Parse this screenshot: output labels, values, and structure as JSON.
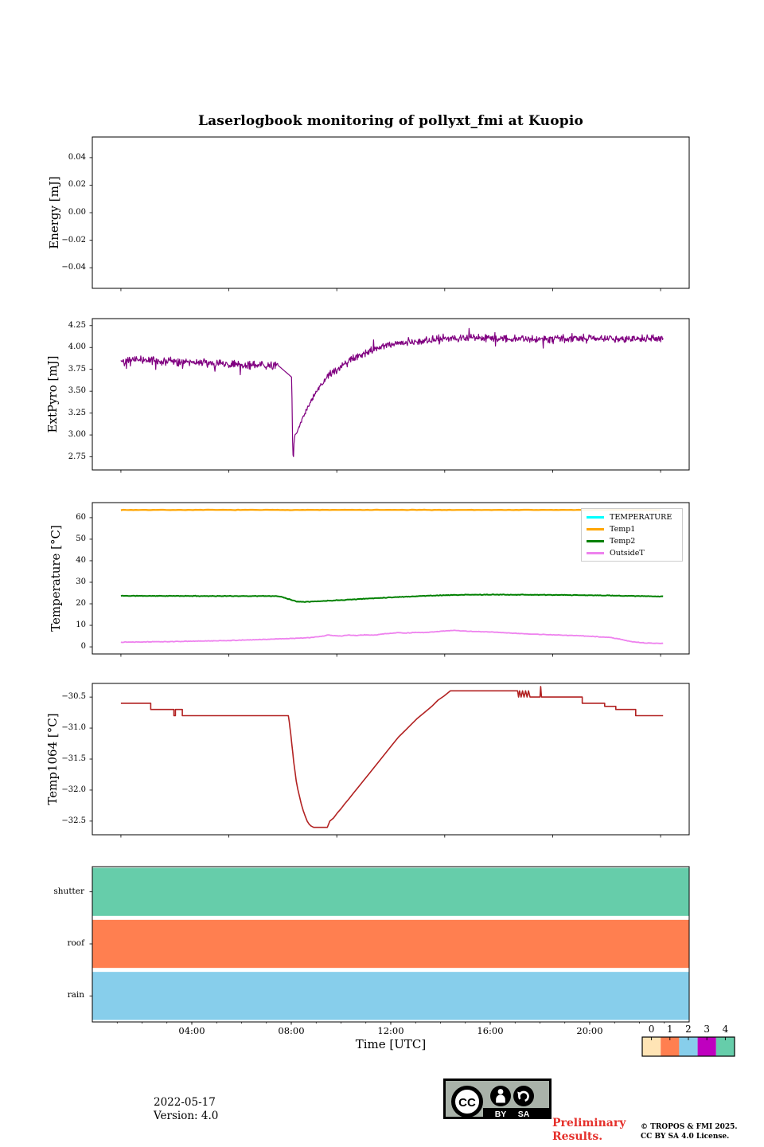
{
  "title": "Laserlogbook monitoring of pollyxt_fmi at Kuopio",
  "xaxis": {
    "label": "Time [UTC]",
    "tick_labels": [
      "04:00",
      "08:00",
      "12:00",
      "16:00",
      "20:00"
    ],
    "tick_hours": [
      4,
      8,
      12,
      16,
      20
    ],
    "xlim": [
      0,
      24
    ]
  },
  "colorbar": {
    "labels": [
      "0",
      "1",
      "2",
      "3",
      "4"
    ],
    "colors": [
      "#ffe4b5",
      "#ff7f50",
      "#87ceeb",
      "#bf00bf",
      "#66cdaa"
    ]
  },
  "badge": {
    "cc": "CC",
    "by": "BY",
    "sa": "SA"
  },
  "footer": {
    "date": "2022-05-17",
    "version": "Version: 4.0",
    "preliminary_line1": "Preliminary",
    "preliminary_line2": "Results.",
    "copyright_line1": "© TROPOS & FMI 2025.",
    "copyright_line2": "CC BY SA 4.0 License."
  },
  "chart_data": [
    {
      "id": "energy",
      "type": "line",
      "ylabel": "Energy [mJ]",
      "ylim": [
        -0.055,
        0.055
      ],
      "yticks": [
        {
          "v": 0.04,
          "label": "0.04"
        },
        {
          "v": 0.02,
          "label": "0.02"
        },
        {
          "v": 0.0,
          "label": "0.00"
        },
        {
          "v": -0.02,
          "label": "−0.02"
        },
        {
          "v": -0.04,
          "label": "−0.04"
        }
      ],
      "series": []
    },
    {
      "id": "extpyro",
      "type": "line",
      "ylabel": "ExtPyro [mJ]",
      "ylim": [
        2.6,
        4.33
      ],
      "yticks": [
        {
          "v": 4.25,
          "label": "4.25"
        },
        {
          "v": 4.0,
          "label": "4.00"
        },
        {
          "v": 3.75,
          "label": "3.75"
        },
        {
          "v": 3.5,
          "label": "3.50"
        },
        {
          "v": 3.25,
          "label": "3.25"
        },
        {
          "v": 3.0,
          "label": "3.00"
        },
        {
          "v": 2.75,
          "label": "2.75"
        }
      ],
      "series": [
        {
          "name": "ExtPyro",
          "color": "#800080",
          "lw": 1.2,
          "anchors": [
            [
              1.15,
              3.85
            ],
            [
              2.0,
              3.86
            ],
            [
              3.0,
              3.84
            ],
            [
              4.0,
              3.83
            ],
            [
              5.0,
              3.81
            ],
            [
              6.0,
              3.8
            ],
            [
              7.0,
              3.79
            ],
            [
              7.45,
              3.8
            ],
            [
              8.02,
              3.66
            ],
            [
              8.05,
              2.95
            ],
            [
              8.08,
              2.68
            ],
            [
              8.11,
              2.9
            ],
            [
              8.14,
              3.0
            ],
            [
              8.22,
              3.02
            ],
            [
              8.5,
              3.22
            ],
            [
              9.0,
              3.5
            ],
            [
              9.5,
              3.68
            ],
            [
              10.0,
              3.79
            ],
            [
              10.5,
              3.87
            ],
            [
              11.0,
              3.94
            ],
            [
              11.5,
              4.0
            ],
            [
              12.0,
              4.04
            ],
            [
              13.0,
              4.07
            ],
            [
              14.0,
              4.1
            ],
            [
              15.5,
              4.11
            ],
            [
              17.0,
              4.1
            ],
            [
              19.0,
              4.1
            ],
            [
              21.0,
              4.1
            ],
            [
              22.95,
              4.1
            ]
          ],
          "noise": {
            "dt": 0.02,
            "seed": 42,
            "amp_pre": 0.055,
            "amp_post": 0.05,
            "quiet": [
              7.45,
              8.25
            ],
            "ramp_end": 9.6,
            "spike_prob": 0.05,
            "spike_amp": 0.09
          }
        }
      ]
    },
    {
      "id": "temperature",
      "type": "line",
      "ylabel": "Temperature [°C]",
      "ylim": [
        -3.3,
        67
      ],
      "yticks": [
        {
          "v": 60,
          "label": "60"
        },
        {
          "v": 50,
          "label": "50"
        },
        {
          "v": 40,
          "label": "40"
        },
        {
          "v": 30,
          "label": "30"
        },
        {
          "v": 20,
          "label": "20"
        },
        {
          "v": 10,
          "label": "10"
        },
        {
          "v": 0,
          "label": "0"
        }
      ],
      "legend": [
        {
          "label": "TEMPERATURE",
          "color": "#00ffff"
        },
        {
          "label": "Temp1",
          "color": "#ffa500"
        },
        {
          "label": "Temp2",
          "color": "#008000"
        },
        {
          "label": "OutsideT",
          "color": "#ee82ee"
        }
      ],
      "series": [
        {
          "name": "Temp1",
          "color": "#ffa500",
          "lw": 2.2,
          "anchors": [
            [
              1.15,
              63.6
            ],
            [
              22.95,
              63.6
            ]
          ],
          "noise": {
            "dt": 0.1,
            "seed": 7,
            "amp_pre": 0.12,
            "amp_post": 0.12
          }
        },
        {
          "name": "Temp2",
          "color": "#008000",
          "lw": 2.0,
          "anchors": [
            [
              1.15,
              23.7
            ],
            [
              3.0,
              23.65
            ],
            [
              5.0,
              23.6
            ],
            [
              7.3,
              23.6
            ],
            [
              7.6,
              23.3
            ],
            [
              7.9,
              22.2
            ],
            [
              8.2,
              21.1
            ],
            [
              8.5,
              20.95
            ],
            [
              9.0,
              21.1
            ],
            [
              9.6,
              21.5
            ],
            [
              10.4,
              22.0
            ],
            [
              11.2,
              22.5
            ],
            [
              12.0,
              23.0
            ],
            [
              12.8,
              23.4
            ],
            [
              13.6,
              23.8
            ],
            [
              14.4,
              24.05
            ],
            [
              15.2,
              24.2
            ],
            [
              16.5,
              24.25
            ],
            [
              17.5,
              24.2
            ],
            [
              18.5,
              24.1
            ],
            [
              19.5,
              24.0
            ],
            [
              20.5,
              23.9
            ],
            [
              21.5,
              23.7
            ],
            [
              22.3,
              23.5
            ],
            [
              22.95,
              23.45
            ]
          ],
          "noise": {
            "dt": 0.04,
            "seed": 11,
            "amp_pre": 0.18,
            "amp_post": 0.18
          }
        },
        {
          "name": "OutsideT",
          "color": "#ee82ee",
          "lw": 1.8,
          "anchors": [
            [
              1.15,
              2.2
            ],
            [
              2.0,
              2.3
            ],
            [
              3.0,
              2.4
            ],
            [
              4.0,
              2.6
            ],
            [
              5.0,
              2.8
            ],
            [
              6.0,
              3.1
            ],
            [
              7.0,
              3.5
            ],
            [
              8.0,
              3.9
            ],
            [
              8.8,
              4.3
            ],
            [
              9.3,
              5.0
            ],
            [
              9.5,
              5.6
            ],
            [
              9.7,
              5.2
            ],
            [
              10.0,
              5.0
            ],
            [
              10.3,
              5.5
            ],
            [
              10.6,
              5.3
            ],
            [
              11.0,
              5.6
            ],
            [
              11.3,
              5.4
            ],
            [
              11.7,
              6.0
            ],
            [
              12.0,
              6.3
            ],
            [
              12.3,
              6.6
            ],
            [
              12.6,
              6.4
            ],
            [
              13.0,
              6.7
            ],
            [
              13.3,
              6.6
            ],
            [
              13.8,
              7.0
            ],
            [
              14.3,
              7.5
            ],
            [
              14.6,
              7.6
            ],
            [
              15.0,
              7.3
            ],
            [
              15.5,
              7.1
            ],
            [
              16.0,
              6.9
            ],
            [
              16.5,
              6.6
            ],
            [
              17.0,
              6.3
            ],
            [
              17.5,
              6.0
            ],
            [
              18.0,
              5.8
            ],
            [
              18.5,
              5.6
            ],
            [
              19.0,
              5.4
            ],
            [
              19.5,
              5.2
            ],
            [
              20.0,
              4.9
            ],
            [
              20.5,
              4.6
            ],
            [
              20.8,
              4.4
            ],
            [
              21.2,
              3.6
            ],
            [
              21.6,
              2.6
            ],
            [
              22.0,
              2.0
            ],
            [
              22.4,
              1.7
            ],
            [
              22.95,
              1.6
            ]
          ],
          "noise": {
            "dt": 0.04,
            "seed": 13,
            "amp_pre": 0.14,
            "amp_post": 0.14
          }
        }
      ]
    },
    {
      "id": "temp1064",
      "type": "step",
      "ylabel": "Temp1064 [°C]",
      "ylim": [
        -32.72,
        -30.28
      ],
      "yticks": [
        {
          "v": -30.5,
          "label": "−30.5"
        },
        {
          "v": -31.0,
          "label": "−31.0"
        },
        {
          "v": -31.5,
          "label": "−31.5"
        },
        {
          "v": -32.0,
          "label": "−32.0"
        },
        {
          "v": -32.5,
          "label": "−32.5"
        }
      ],
      "series": [
        {
          "name": "Temp1064",
          "color": "#b22222",
          "lw": 1.6,
          "points": [
            [
              1.15,
              -30.6
            ],
            [
              2.35,
              -30.6
            ],
            [
              2.35,
              -30.7
            ],
            [
              3.28,
              -30.7
            ],
            [
              3.28,
              -30.8
            ],
            [
              3.34,
              -30.8
            ],
            [
              3.34,
              -30.7
            ],
            [
              3.62,
              -30.7
            ],
            [
              3.62,
              -30.8
            ],
            [
              7.88,
              -30.8
            ],
            [
              7.92,
              -30.9
            ],
            [
              7.95,
              -31.0
            ],
            [
              7.98,
              -31.1
            ],
            [
              8.02,
              -31.25
            ],
            [
              8.06,
              -31.4
            ],
            [
              8.1,
              -31.55
            ],
            [
              8.15,
              -31.7
            ],
            [
              8.2,
              -31.85
            ],
            [
              8.26,
              -31.98
            ],
            [
              8.33,
              -32.1
            ],
            [
              8.4,
              -32.22
            ],
            [
              8.48,
              -32.33
            ],
            [
              8.56,
              -32.42
            ],
            [
              8.64,
              -32.5
            ],
            [
              8.72,
              -32.55
            ],
            [
              8.8,
              -32.58
            ],
            [
              8.9,
              -32.6
            ],
            [
              9.45,
              -32.6
            ],
            [
              9.55,
              -32.5
            ],
            [
              9.7,
              -32.45
            ],
            [
              9.85,
              -32.37
            ],
            [
              10.0,
              -32.3
            ],
            [
              10.15,
              -32.22
            ],
            [
              10.3,
              -32.15
            ],
            [
              10.5,
              -32.05
            ],
            [
              10.7,
              -31.95
            ],
            [
              10.9,
              -31.85
            ],
            [
              11.1,
              -31.75
            ],
            [
              11.3,
              -31.65
            ],
            [
              11.5,
              -31.55
            ],
            [
              11.7,
              -31.45
            ],
            [
              11.9,
              -31.35
            ],
            [
              12.1,
              -31.25
            ],
            [
              12.3,
              -31.15
            ],
            [
              12.55,
              -31.05
            ],
            [
              12.8,
              -30.95
            ],
            [
              13.05,
              -30.85
            ],
            [
              13.35,
              -30.75
            ],
            [
              13.65,
              -30.65
            ],
            [
              13.9,
              -30.55
            ],
            [
              14.15,
              -30.48
            ],
            [
              14.4,
              -30.4
            ],
            [
              17.1,
              -30.4
            ],
            [
              17.14,
              -30.5
            ],
            [
              17.18,
              -30.4
            ],
            [
              17.24,
              -30.5
            ],
            [
              17.3,
              -30.4
            ],
            [
              17.36,
              -30.5
            ],
            [
              17.42,
              -30.4
            ],
            [
              17.48,
              -30.5
            ],
            [
              17.54,
              -30.4
            ],
            [
              17.6,
              -30.5
            ],
            [
              18.0,
              -30.5
            ],
            [
              18.03,
              -30.33
            ],
            [
              18.06,
              -30.5
            ],
            [
              19.7,
              -30.5
            ],
            [
              19.7,
              -30.6
            ],
            [
              20.6,
              -30.6
            ],
            [
              20.6,
              -30.65
            ],
            [
              21.05,
              -30.65
            ],
            [
              21.05,
              -30.7
            ],
            [
              21.85,
              -30.7
            ],
            [
              21.85,
              -30.8
            ],
            [
              22.95,
              -30.8
            ]
          ]
        }
      ]
    },
    {
      "id": "status",
      "type": "bars",
      "categories": [
        "shutter",
        "roof",
        "rain"
      ],
      "colors": [
        "#66cdaa",
        "#ff7f50",
        "#87ceeb"
      ]
    }
  ]
}
